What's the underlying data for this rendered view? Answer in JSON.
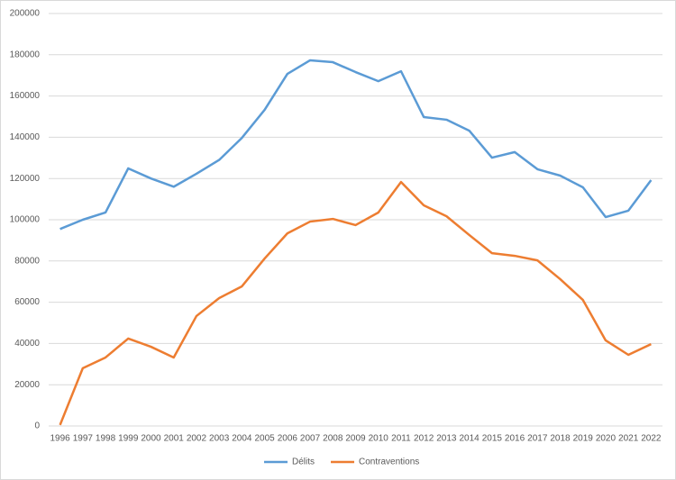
{
  "chart_data": {
    "type": "line",
    "categories": [
      "1996",
      "1997",
      "1998",
      "1999",
      "2000",
      "2001",
      "2002",
      "2003",
      "2004",
      "2005",
      "2006",
      "2007",
      "2008",
      "2009",
      "2010",
      "2011",
      "2012",
      "2013",
      "2014",
      "2015",
      "2016",
      "2017",
      "2018",
      "2019",
      "2020",
      "2021",
      "2022"
    ],
    "series": [
      {
        "name": "Délits",
        "color": "#5b9bd5",
        "values": [
          95500,
          100000,
          103500,
          124900,
          120000,
          116000,
          122300,
          129000,
          139700,
          153300,
          170700,
          177300,
          176400,
          171600,
          167200,
          172000,
          149800,
          148500,
          143200,
          130100,
          132800,
          124500,
          121400,
          115700,
          101300,
          104400,
          119200
        ]
      },
      {
        "name": "Contraventions",
        "color": "#ed7d31",
        "values": [
          500,
          28000,
          33200,
          42400,
          38400,
          33200,
          53300,
          62000,
          67700,
          81200,
          93400,
          99100,
          100400,
          97400,
          103500,
          118300,
          107000,
          101700,
          92600,
          83800,
          82500,
          80300,
          71200,
          61100,
          41500,
          34500,
          39700
        ]
      }
    ],
    "ylim": [
      0,
      200000
    ],
    "yticks": [
      0,
      20000,
      40000,
      60000,
      80000,
      100000,
      120000,
      140000,
      160000,
      180000,
      200000
    ],
    "grid": true,
    "legend": "bottom"
  }
}
